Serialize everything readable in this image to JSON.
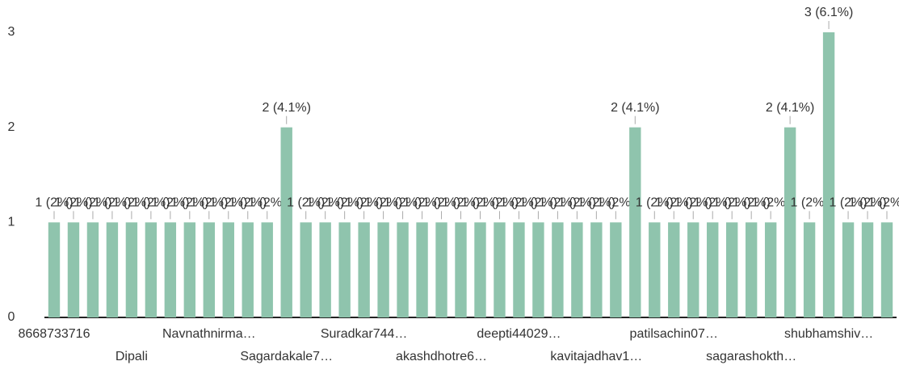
{
  "chart_data": {
    "type": "bar",
    "categories": [
      "8668733716",
      null,
      null,
      null,
      "Dipali",
      null,
      null,
      null,
      "Navnathnirma…",
      null,
      null,
      null,
      "Sagardakale7…",
      null,
      null,
      null,
      "Suradkar744…",
      null,
      null,
      null,
      "akashdhotre6…",
      null,
      null,
      null,
      "deepti44029…",
      null,
      null,
      null,
      "kavitajadhav1…",
      null,
      null,
      null,
      "patilsachin07…",
      null,
      null,
      null,
      "sagarashokth…",
      null,
      null,
      null,
      "shubhamshiv…",
      null,
      null,
      null
    ],
    "values": [
      1,
      1,
      1,
      1,
      1,
      1,
      1,
      1,
      1,
      1,
      1,
      1,
      2,
      1,
      1,
      1,
      1,
      1,
      1,
      1,
      1,
      1,
      1,
      1,
      1,
      1,
      1,
      1,
      1,
      1,
      2,
      1,
      1,
      1,
      1,
      1,
      1,
      1,
      2,
      1,
      3,
      1,
      1,
      1
    ],
    "value_labels": [
      "1 (2%)",
      "1 (2%)",
      "1 (2%)",
      "1 (2%)",
      "1 (2%)",
      "1 (2%)",
      "1 (2%)",
      "1 (2%)",
      "1 (2%)",
      "1 (2%)",
      "1 (2%)",
      "1 (2%)",
      "2 (4.1%)",
      "1 (2%)",
      "1 (2%)",
      "1 (2%)",
      "1 (2%)",
      "1 (2%)",
      "1 (2%)",
      "1 (2%)",
      "1 (2%)",
      "1 (2%)",
      "1 (2%)",
      "1 (2%)",
      "1 (2%)",
      "1 (2%)",
      "1 (2%)",
      "1 (2%)",
      "1 (2%)",
      "1 (2%)",
      "2 (4.1%)",
      "1 (2%)",
      "1 (2%)",
      "1 (2%)",
      "1 (2%)",
      "1 (2%)",
      "1 (2%)",
      "1 (2%)",
      "2 (4.1%)",
      "1 (2%)",
      "3 (6.1%)",
      "1 (2%)",
      "1 (2%)",
      "1 (2%)"
    ],
    "color": "#8fc4ad",
    "ylim": [
      0,
      3
    ],
    "yticks": [
      0,
      1,
      2,
      3
    ],
    "grid": false
  }
}
